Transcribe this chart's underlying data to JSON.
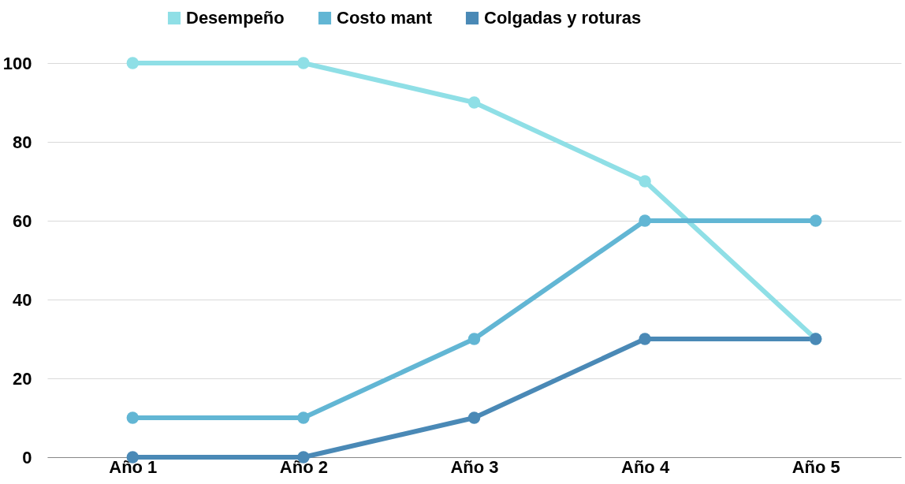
{
  "chart_data": {
    "type": "line",
    "categories": [
      "Año 1",
      "Año 2",
      "Año 3",
      "Año 4",
      "Año 5"
    ],
    "series": [
      {
        "name": "Desempeño",
        "color": "#8fdfe6",
        "values": [
          100,
          100,
          90,
          70,
          30
        ]
      },
      {
        "name": "Costo mant",
        "color": "#62b6d4",
        "values": [
          10,
          10,
          30,
          60,
          60
        ]
      },
      {
        "name": "Colgadas y roturas",
        "color": "#4a89b6",
        "values": [
          0,
          0,
          10,
          30,
          30
        ]
      }
    ],
    "ylim": [
      0,
      100
    ],
    "yticks": [
      0,
      20,
      40,
      60,
      80,
      100
    ],
    "grid": "y",
    "legend": "top",
    "marker": "circle",
    "line_style": "solid"
  }
}
